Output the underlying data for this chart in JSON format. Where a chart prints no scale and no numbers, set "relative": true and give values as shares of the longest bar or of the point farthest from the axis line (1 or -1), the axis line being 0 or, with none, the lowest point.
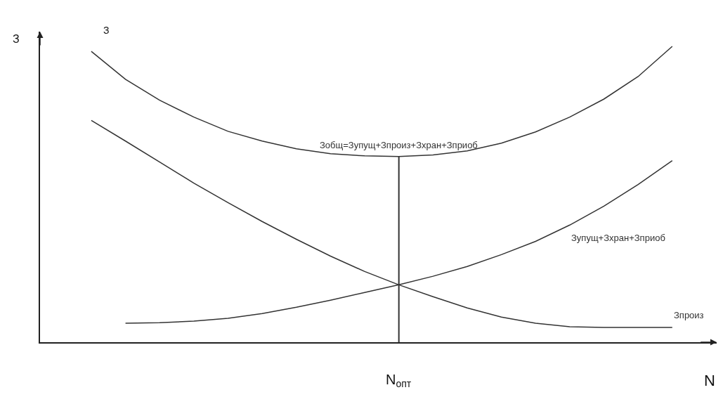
{
  "chart_data": {
    "type": "line",
    "relative": true,
    "xlabel": "N",
    "ylabel": "З",
    "legend": false,
    "marker": "none",
    "line_style": "solid",
    "categories": [
      null,
      null,
      null,
      null,
      null,
      null,
      null,
      null,
      null,
      null,
      null,
      null,
      null,
      null,
      null,
      null,
      null,
      null
    ],
    "series": [
      {
        "name": "Зобщ=Зупущ+Зпроиз+Зхран+Зприоб",
        "color": "#333333",
        "values": [
          0.983,
          0.889,
          0.818,
          0.761,
          0.713,
          0.68,
          0.654,
          0.637,
          0.63,
          0.628,
          0.633,
          0.647,
          0.673,
          0.711,
          0.761,
          0.822,
          0.898,
          1
        ]
      },
      {
        "name": "Зупущ+Зхран+Зприоб",
        "color": "#333333",
        "values": [
          null,
          0.064,
          0.066,
          0.071,
          0.081,
          0.097,
          0.118,
          0.142,
          0.168,
          0.194,
          0.223,
          0.256,
          0.296,
          0.341,
          0.396,
          0.46,
          0.533,
          0.614
        ]
      },
      {
        "name": "Зпроиз",
        "color": "#333333",
        "values": [
          0.75,
          0.68,
          0.609,
          0.538,
          0.472,
          0.408,
          0.348,
          0.291,
          0.239,
          0.194,
          0.154,
          0.116,
          0.085,
          0.064,
          0.052,
          0.05,
          0.05,
          0.05
        ]
      }
    ],
    "annotations": [
      "З",
      "N$_{опт}$"
    ]
  }
}
